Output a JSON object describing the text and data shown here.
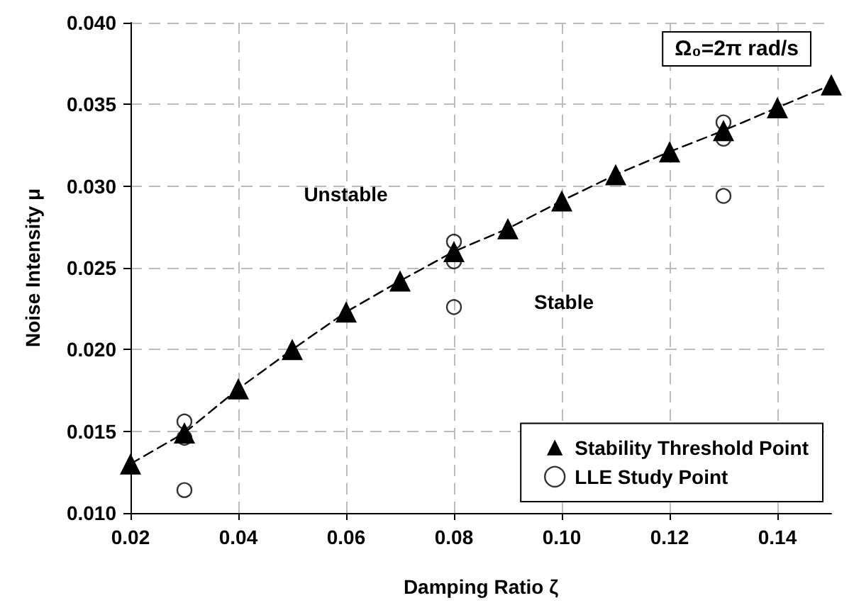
{
  "chart_data": {
    "type": "scatter",
    "xlabel": "Damping Ratio ζ",
    "ylabel": "Noise Intensity μ",
    "series": [
      {
        "name": "Stability Threshold Point",
        "type": "line",
        "color": "#000000",
        "marker": "triangle",
        "line_style": "dashed",
        "x": [
          0.02,
          0.03,
          0.04,
          0.05,
          0.06,
          0.07,
          0.08,
          0.09,
          0.1,
          0.11,
          0.12,
          0.13,
          0.14,
          0.15
        ],
        "values": [
          0.013,
          0.0149,
          0.0176,
          0.02,
          0.0223,
          0.0242,
          0.026,
          0.0274,
          0.0291,
          0.0307,
          0.0321,
          0.0334,
          0.0348,
          0.0362
        ]
      },
      {
        "name": "LLE Study Point",
        "color": "#000000",
        "marker": "circle",
        "x": [
          0.03,
          0.03,
          0.03,
          0.08,
          0.08,
          0.08,
          0.13,
          0.13,
          0.13
        ],
        "values": [
          0.0156,
          0.0146,
          0.0114,
          0.0266,
          0.0254,
          0.0226,
          0.0339,
          0.0329,
          0.0294
        ]
      }
    ],
    "xlim": [
      0.02,
      0.15
    ],
    "xticks": [
      0.02,
      0.04,
      0.06,
      0.08,
      {
        "value": 0.1,
        "label": "0.10"
      },
      0.12,
      0.14
    ],
    "ylim": [
      0.01,
      0.04
    ],
    "yticks": [
      {
        "value": 0.01,
        "label": "0.010"
      },
      {
        "value": 0.015,
        "label": "0.015"
      },
      {
        "value": 0.02,
        "label": "0.020"
      },
      {
        "value": 0.025,
        "label": "0.025"
      },
      {
        "value": 0.03,
        "label": "0.030"
      },
      {
        "value": 0.035,
        "label": "0.035"
      },
      {
        "value": 0.04,
        "label": "0.040"
      }
    ],
    "grid": true,
    "legend": "bottom right",
    "annotations": [
      "Ω₀=2π rad/s",
      "Unstable",
      "Stable"
    ]
  }
}
